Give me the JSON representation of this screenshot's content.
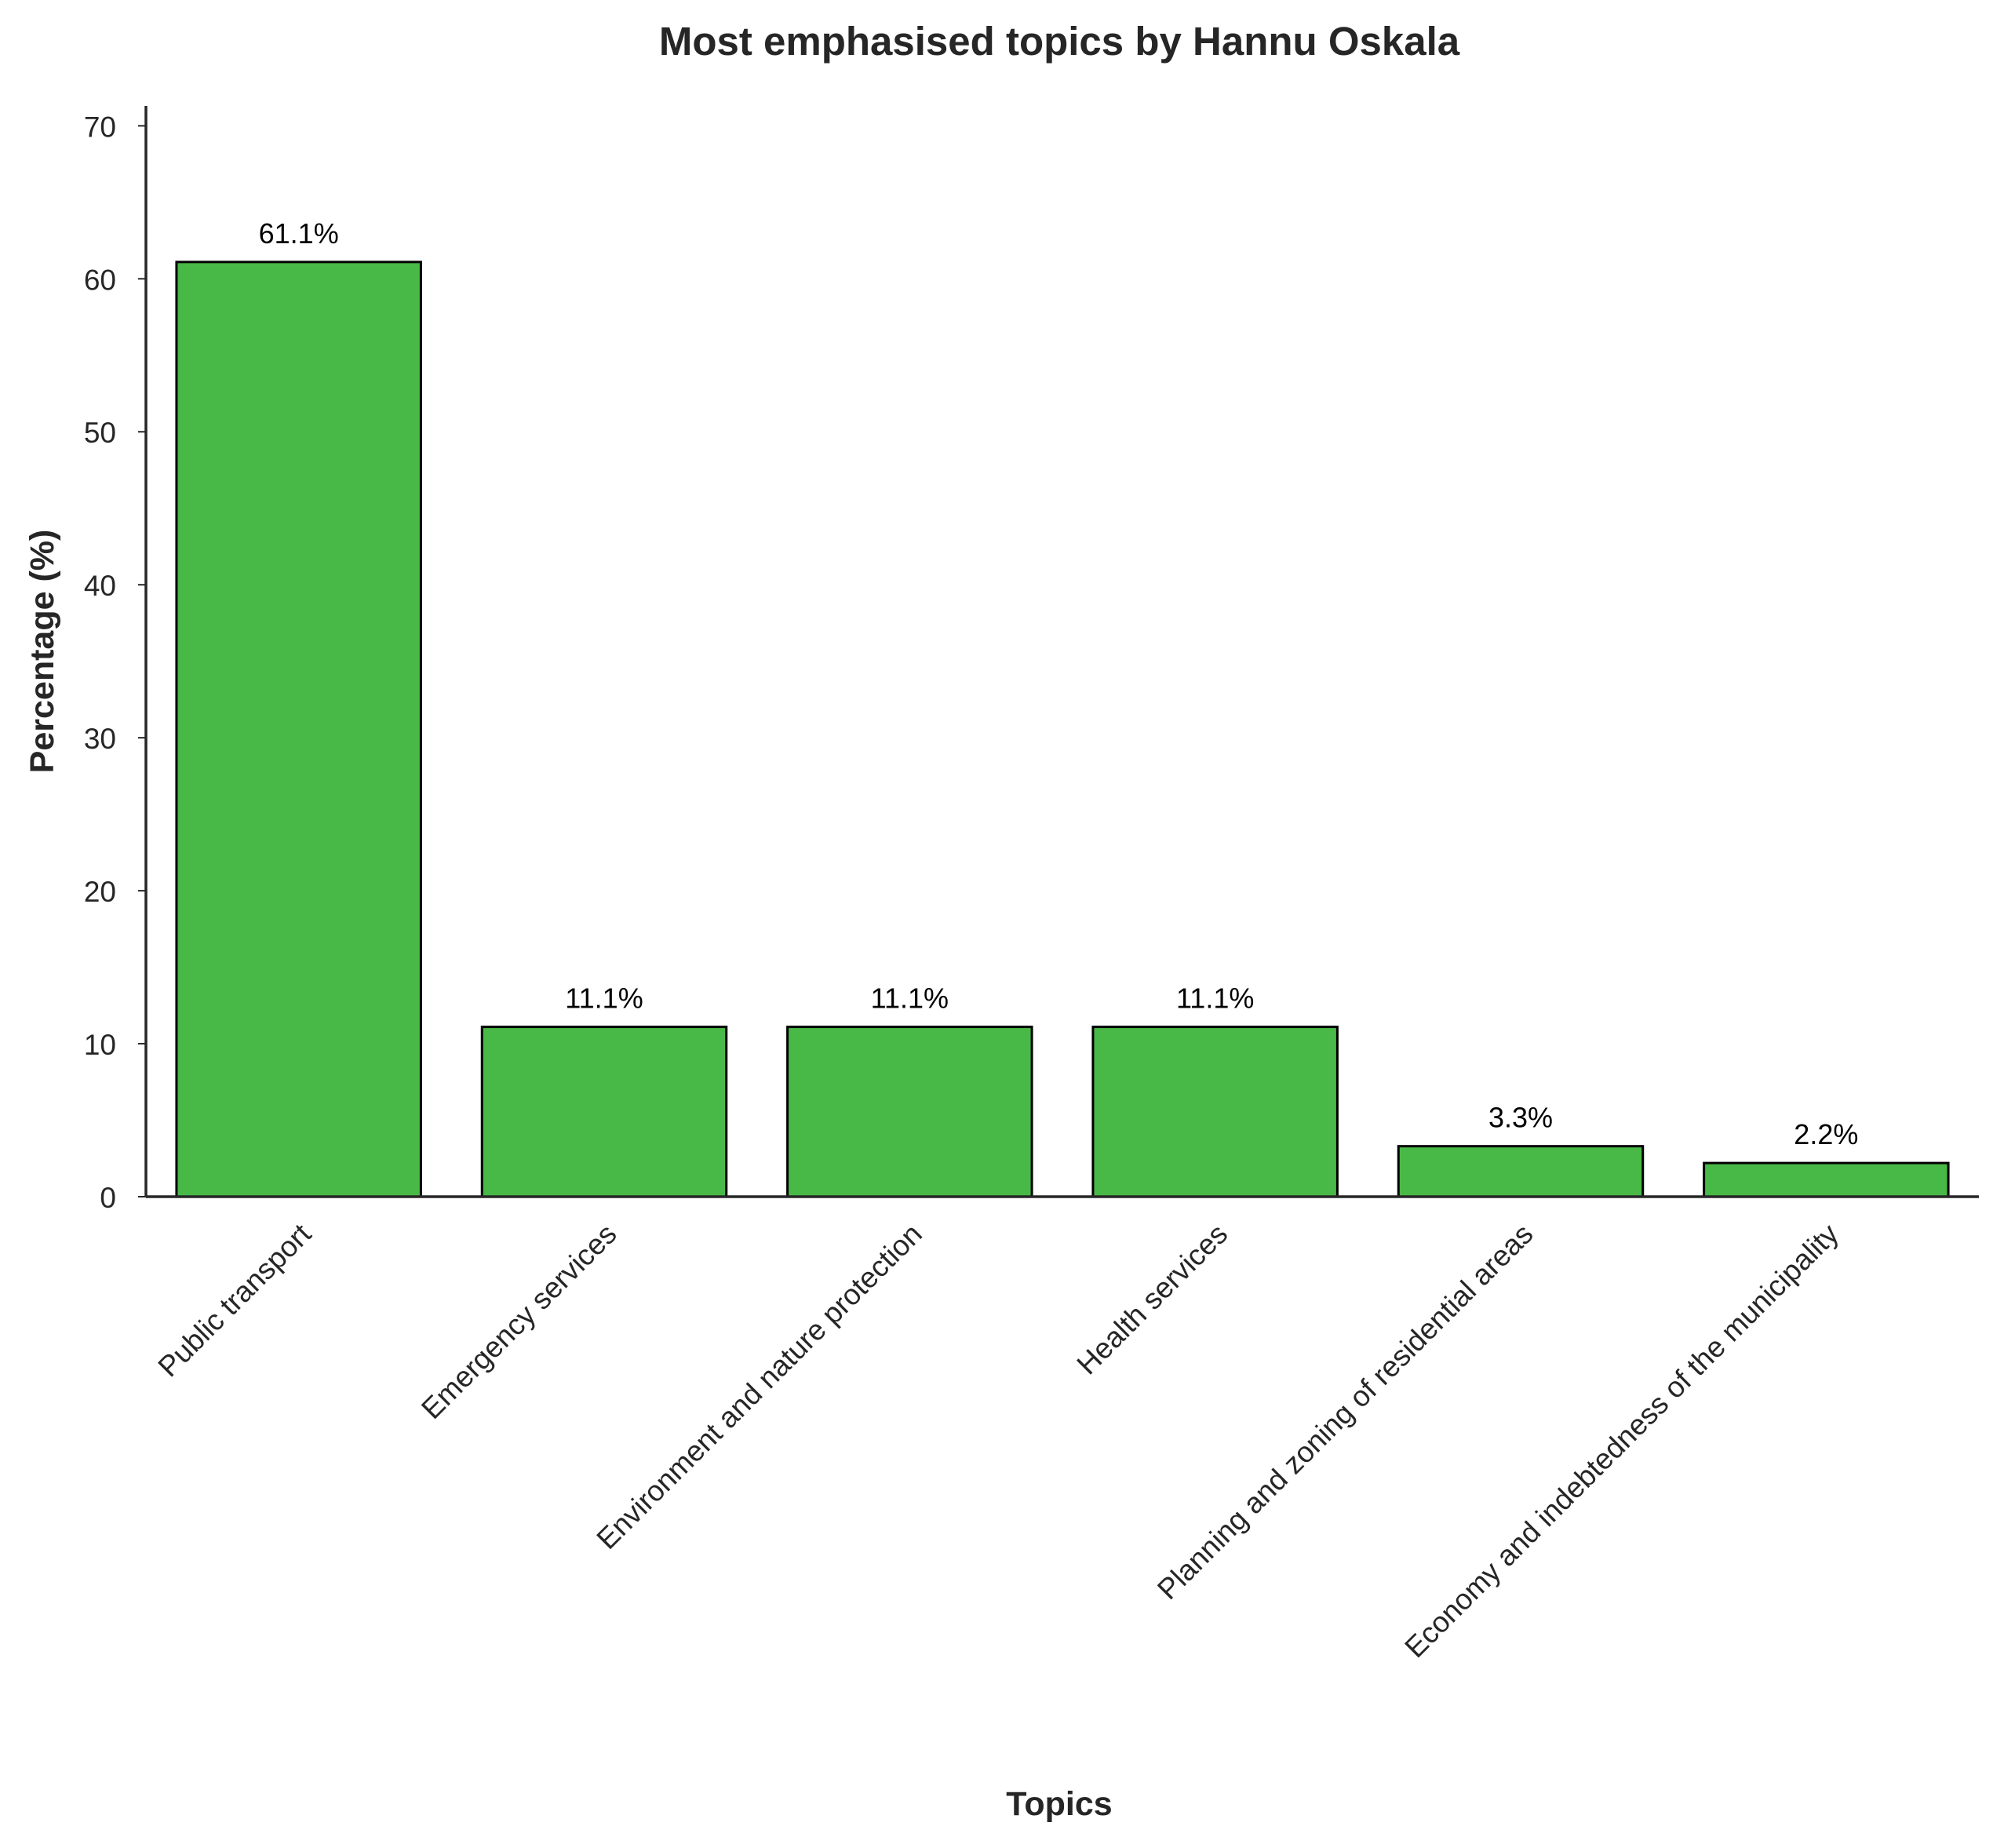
{
  "chart_data": {
    "type": "bar",
    "title": "Most emphasised topics by Hannu Oskala",
    "xlabel": "Topics",
    "ylabel": "Percentage (%)",
    "categories": [
      "Public transport",
      "Emergency services",
      "Environment and nature protection",
      "Health services",
      "Planning and zoning of residential areas",
      "Economy and indebtedness of the municipality"
    ],
    "values": [
      61.1,
      11.1,
      11.1,
      11.1,
      3.3,
      2.2
    ],
    "data_labels": [
      "61.1%",
      "11.1%",
      "11.1%",
      "11.1%",
      "3.3%",
      "2.2%"
    ],
    "yticks": [
      0,
      10,
      20,
      30,
      40,
      50,
      60,
      70
    ],
    "ylim": [
      0,
      71.3
    ],
    "grid": false,
    "colors": {
      "bar_fill": "#48b946",
      "bar_edge": "#000000",
      "axis": "#262626",
      "text": "#262626",
      "label_text": "#000000"
    }
  }
}
